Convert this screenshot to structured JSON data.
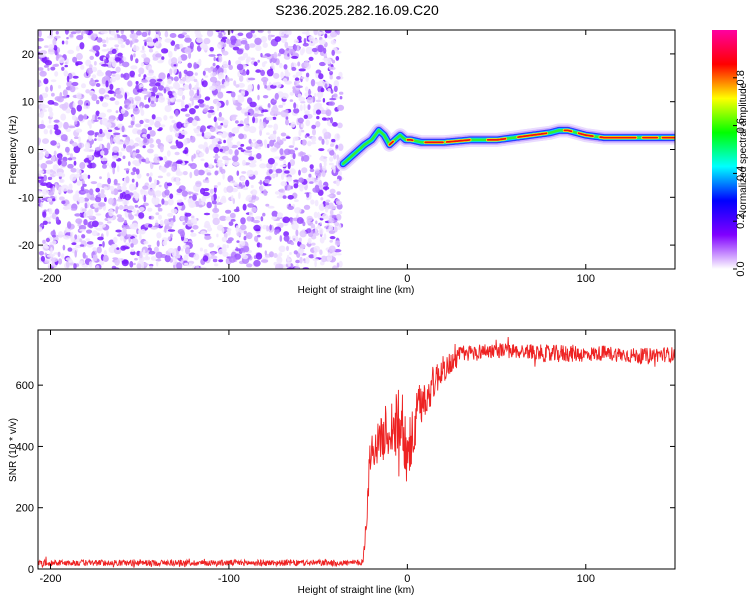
{
  "title": "S236.2025.282.16.09.C20",
  "chart_data": [
    {
      "type": "heatmap",
      "name": "spectrogram",
      "xlabel": "Height of straight line (km)",
      "ylabel": "Frequency (Hz)",
      "xlim": [
        -207,
        150
      ],
      "ylim": [
        -25,
        25
      ],
      "xticks": [
        -200,
        -100,
        0,
        100
      ],
      "xtick_labels": [
        "-200",
        "-100",
        "0",
        "100"
      ],
      "yticks": [
        -20,
        -10,
        0,
        10,
        20
      ],
      "ytick_labels": [
        "-20",
        "-10",
        "0",
        "10",
        "20"
      ],
      "noise_region": [
        -207,
        -37
      ],
      "ridge": {
        "x": [
          -36,
          -33,
          -30,
          -27,
          -24,
          -20,
          -16,
          -13,
          -10,
          -7,
          -4,
          -1,
          2,
          8,
          20,
          35,
          50,
          60,
          70,
          80,
          85,
          90,
          95,
          100,
          110,
          120,
          130,
          140,
          150
        ],
        "freq": [
          -3,
          -2,
          -1,
          0,
          1,
          2,
          4,
          3,
          1,
          2,
          3,
          2,
          2,
          1.5,
          1.5,
          2,
          2,
          2.5,
          3,
          3.5,
          4,
          4,
          3.5,
          3,
          2.5,
          2.5,
          2.5,
          2.5,
          2.5
        ]
      },
      "colorbar": {
        "label": "Normalized spectral amplitude",
        "range": [
          0.0,
          1.0
        ],
        "ticks": [
          0.0,
          0.2,
          0.4,
          0.6,
          0.8
        ],
        "tick_labels": [
          "0.0",
          "0.2",
          "0.4",
          "0.6",
          "0.8"
        ],
        "colors": [
          "#ffffff",
          "#8000ff",
          "#0000ff",
          "#00ffff",
          "#00ff00",
          "#ffff00",
          "#ff0000",
          "#ff00a0"
        ]
      }
    },
    {
      "type": "line",
      "name": "snr",
      "xlabel": "Height of straight line (km)",
      "ylabel": "SNR (10 * v/v)",
      "xlim": [
        -207,
        150
      ],
      "ylim": [
        0,
        780
      ],
      "xticks": [
        -200,
        -100,
        0,
        100
      ],
      "xtick_labels": [
        "-200",
        "-100",
        "0",
        "100"
      ],
      "yticks": [
        0,
        200,
        400,
        600
      ],
      "ytick_labels": [
        "0",
        "200",
        "400",
        "600"
      ],
      "color": "#ee2222",
      "envelope": {
        "x": [
          -207,
          -150,
          -100,
          -50,
          -25,
          -23,
          -21,
          -18,
          -15,
          -12,
          -9,
          -6,
          -3,
          0,
          3,
          6,
          10,
          14,
          18,
          22,
          26,
          30,
          40,
          50,
          60,
          70,
          80,
          90,
          100,
          110,
          120,
          130,
          140,
          150
        ],
        "mean": [
          20,
          20,
          20,
          20,
          20,
          150,
          370,
          400,
          420,
          450,
          460,
          470,
          480,
          380,
          420,
          520,
          560,
          600,
          640,
          660,
          680,
          700,
          710,
          715,
          710,
          710,
          700,
          705,
          700,
          705,
          700,
          695,
          700,
          700
        ],
        "spread": [
          10,
          10,
          10,
          10,
          10,
          40,
          60,
          60,
          70,
          90,
          100,
          110,
          120,
          110,
          100,
          80,
          70,
          60,
          50,
          40,
          35,
          30,
          25,
          25,
          25,
          25,
          30,
          30,
          25,
          25,
          25,
          25,
          25,
          25
        ]
      }
    }
  ]
}
